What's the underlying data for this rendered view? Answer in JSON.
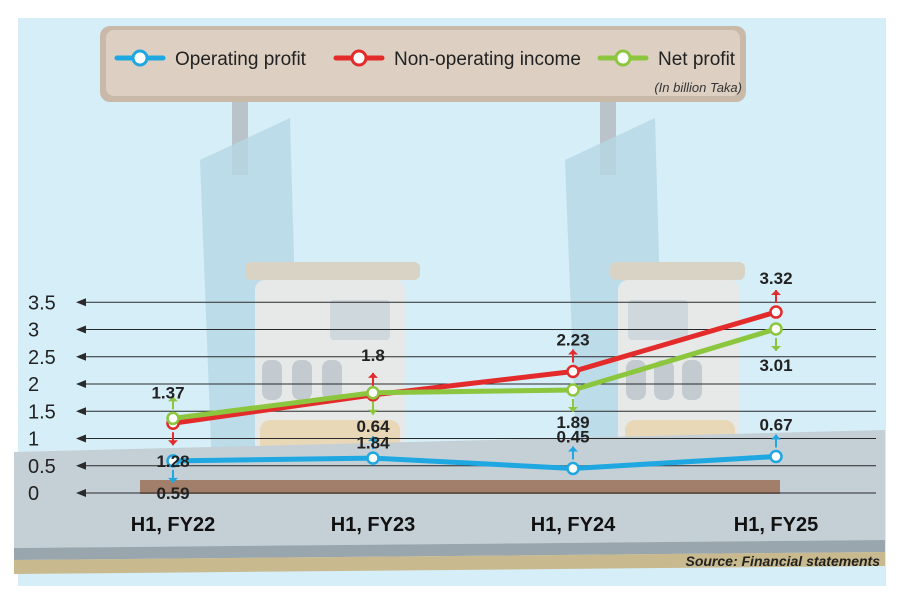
{
  "chart_data": {
    "type": "line",
    "categories": [
      "H1, FY22",
      "H1, FY23",
      "H1, FY24",
      "H1, FY25"
    ],
    "series": [
      {
        "name": "Operating profit",
        "color": "#1ea7e1",
        "values": [
          0.59,
          0.64,
          0.45,
          0.67
        ],
        "labels": [
          "0.59",
          "0.64",
          "0.45",
          "0.67"
        ]
      },
      {
        "name": "Non-operating income",
        "color": "#e32b2b",
        "values": [
          1.28,
          1.8,
          2.23,
          3.32
        ],
        "labels": [
          "1.28",
          "1.8",
          "2.23",
          "3.32"
        ]
      },
      {
        "name": "Net profit",
        "color": "#8cc63f",
        "values": [
          1.37,
          1.84,
          1.89,
          3.01
        ],
        "labels": [
          "1.37",
          "1.84",
          "1.89",
          "3.01"
        ]
      }
    ],
    "y_ticks": [
      "0",
      "0.5",
      "1",
      "1.5",
      "2",
      "2.5",
      "3",
      "3.5"
    ],
    "ylim": [
      0,
      3.5
    ],
    "unit_note": "(In billion Taka)",
    "source": "Source: Financial statements",
    "grid": true,
    "legend_position": "top"
  }
}
